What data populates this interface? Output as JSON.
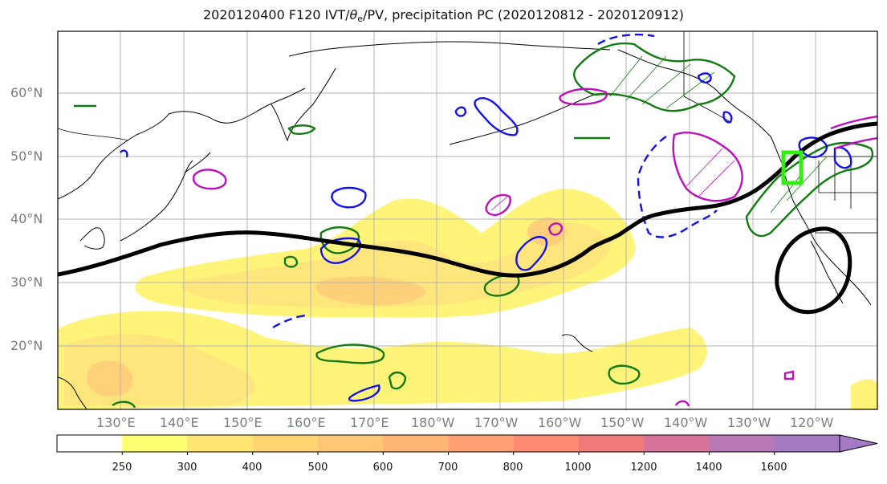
{
  "title": {
    "prefix": "2020120400 F120 IVT/",
    "theta": "θ",
    "theta_sub": "e",
    "suffix": "/PV, precipitation PC (2020120812 - 2020120912)"
  },
  "lat_labels": [
    "60°N",
    "50°N",
    "40°N",
    "30°N",
    "20°N"
  ],
  "lon_labels": [
    "130°E",
    "140°E",
    "150°E",
    "160°E",
    "170°E",
    "180°W",
    "170°W",
    "160°W",
    "150°W",
    "140°W",
    "130°W",
    "120°W"
  ],
  "colorbar": {
    "ticks": [
      "250",
      "300",
      "400",
      "500",
      "600",
      "700",
      "800",
      "1000",
      "1200",
      "1400",
      "1600"
    ],
    "colors": [
      "#ffffff",
      "#ffff73",
      "#ffe673",
      "#ffd573",
      "#ffc773",
      "#ffb573",
      "#ff9f73",
      "#ff8a73",
      "#f07a7a",
      "#d7739a",
      "#b978b8",
      "#a47ac4"
    ]
  },
  "colors": {
    "ivt_fill_light": "#fff47a",
    "ivt_fill_mid": "#ffe67c",
    "ivt_fill_dark": "#ffd07a",
    "coast": "#000000",
    "pv_contour": "#000000",
    "precip_positive": "#117a11",
    "precip_negative": "#1111ee",
    "theta_contour": "#bb11bb",
    "target_box": "#33ee11"
  }
}
